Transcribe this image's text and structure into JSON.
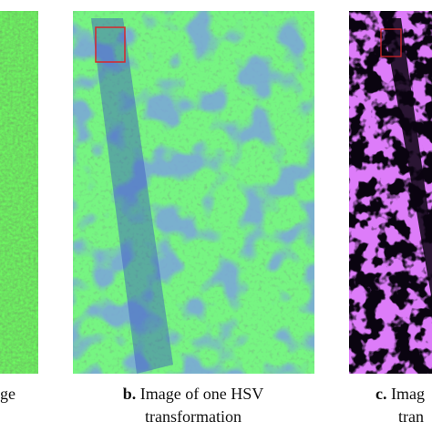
{
  "panels": [
    {
      "caption": [
        "ge"
      ]
    },
    {
      "label": "b.",
      "caption": [
        "Image of one HSV",
        "transformation"
      ]
    },
    {
      "label": "c.",
      "caption": [
        "Imag",
        "tran"
      ]
    }
  ]
}
